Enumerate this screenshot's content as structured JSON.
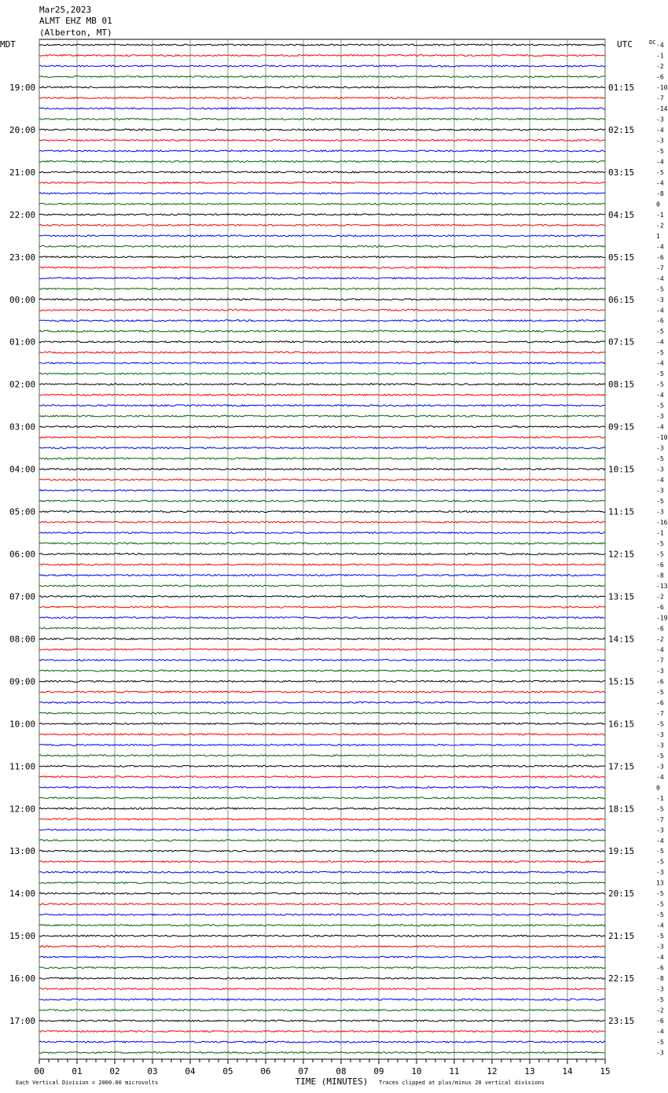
{
  "chart_data": {
    "type": "helicorder",
    "title_lines": [
      "Mar25,2023",
      "ALMT EHZ MB 01",
      "(Alberton, MT)"
    ],
    "left_header": "MDT",
    "right_header": "UTC",
    "dc_header": "DC",
    "xlabel": "TIME (MINUTES)",
    "footer_left": "Each Vertical Division = 2000.00 microvolts",
    "footer_right": "Traces clipped at plus/minus 20 vertical divisions",
    "xlim": [
      0,
      15
    ],
    "xticks": [
      {
        "value": 0,
        "label": "00"
      },
      {
        "value": 1,
        "label": "01"
      },
      {
        "value": 2,
        "label": "02"
      },
      {
        "value": 3,
        "label": "03"
      },
      {
        "value": 4,
        "label": "04"
      },
      {
        "value": 5,
        "label": "05"
      },
      {
        "value": 6,
        "label": "06"
      },
      {
        "value": 7,
        "label": "07"
      },
      {
        "value": 8,
        "label": "08"
      },
      {
        "value": 9,
        "label": "09"
      },
      {
        "value": 10,
        "label": "10"
      },
      {
        "value": 11,
        "label": "11"
      },
      {
        "value": 12,
        "label": "12"
      },
      {
        "value": 13,
        "label": "13"
      },
      {
        "value": 14,
        "label": "14"
      },
      {
        "value": 15,
        "label": "15"
      }
    ],
    "trace_colors": [
      "#000000",
      "#ff0000",
      "#0000ff",
      "#006400"
    ],
    "left_labels": [
      "19:00",
      "20:00",
      "21:00",
      "22:00",
      "23:00",
      "00:00",
      "01:00",
      "02:00",
      "03:00",
      "04:00",
      "05:00",
      "06:00",
      "07:00",
      "08:00",
      "09:00",
      "10:00",
      "11:00",
      "12:00",
      "13:00",
      "14:00",
      "15:00",
      "16:00",
      "17:00"
    ],
    "right_labels": [
      "01:15",
      "02:15",
      "03:15",
      "04:15",
      "05:15",
      "06:15",
      "07:15",
      "08:15",
      "09:15",
      "10:15",
      "11:15",
      "12:15",
      "13:15",
      "14:15",
      "15:15",
      "16:15",
      "17:15",
      "18:15",
      "19:15",
      "20:15",
      "21:15",
      "22:15",
      "23:15"
    ],
    "dc_offsets": [
      -4,
      -1,
      -2,
      -6,
      -10,
      -7,
      -14,
      -3,
      -4,
      -3,
      -5,
      -4,
      -5,
      -4,
      -8,
      0,
      -1,
      -2,
      1,
      -4,
      -6,
      -7,
      -4,
      -5,
      -3,
      -4,
      -6,
      -5,
      -4,
      -5,
      -4,
      -5,
      -5,
      -4,
      -5,
      -3,
      -4,
      -10,
      -3,
      -5,
      -3,
      -4,
      -3,
      -5,
      -3,
      -16,
      -1,
      -5,
      -5,
      -6,
      -8,
      -13,
      -2,
      -6,
      -19,
      -6,
      -2,
      -4,
      -7,
      -3,
      -6,
      -5,
      -6,
      -7,
      -5,
      -3,
      -3,
      -5,
      -3,
      -4,
      0,
      -1,
      -5,
      -7,
      -3,
      -4,
      -5,
      -5,
      -3,
      13,
      -5,
      -5,
      -5,
      -4,
      -5,
      -3,
      -4,
      -6,
      -8,
      -3,
      -5,
      -2,
      -6,
      -4,
      -5,
      -3
    ]
  }
}
